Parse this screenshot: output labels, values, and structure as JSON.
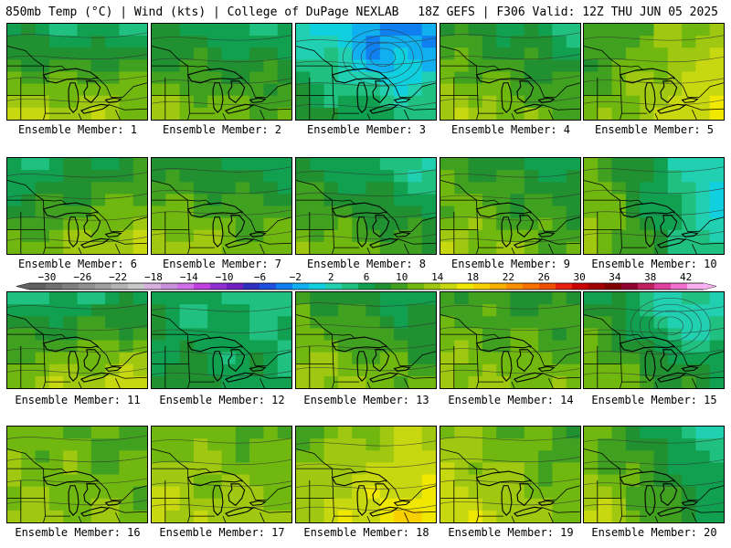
{
  "header": {
    "left_title": "850mb Temp (°C) | Wind (kts) | College of DuPage NEXLAB",
    "right_title": "18Z GEFS | F306 Valid: 12Z THU JUN 05 2025"
  },
  "panel_label_prefix": "Ensemble Member: ",
  "members": [
    {
      "label": "Ensemble Member: 1",
      "base": 13,
      "grad_x": 0.5,
      "grad_y": 9,
      "low": false
    },
    {
      "label": "Ensemble Member: 2",
      "base": 12,
      "grad_x": 1,
      "grad_y": 6,
      "low": false
    },
    {
      "label": "Ensemble Member: 3",
      "base": 6,
      "grad_x": 2,
      "grad_y": 7,
      "low": true
    },
    {
      "label": "Ensemble Member: 4",
      "base": 13,
      "grad_x": 2,
      "grad_y": 6,
      "low": false
    },
    {
      "label": "Ensemble Member: 5",
      "base": 16,
      "grad_x": -3,
      "grad_y": 3,
      "low": false
    },
    {
      "label": "Ensemble Member: 6",
      "base": 13,
      "grad_x": -2,
      "grad_y": 7,
      "low": false
    },
    {
      "label": "Ensemble Member: 7",
      "base": 13,
      "grad_x": 1,
      "grad_y": 6,
      "low": false
    },
    {
      "label": "Ensemble Member: 8",
      "base": 11,
      "grad_x": 2,
      "grad_y": 6,
      "low": false
    },
    {
      "label": "Ensemble Member: 9",
      "base": 13,
      "grad_x": 2,
      "grad_y": 5,
      "low": false
    },
    {
      "label": "Ensemble Member: 10",
      "base": 10,
      "grad_x": 6,
      "grad_y": 2,
      "low": false
    },
    {
      "label": "Ensemble Member: 11",
      "base": 13,
      "grad_x": -1,
      "grad_y": 9,
      "low": false
    },
    {
      "label": "Ensemble Member: 12",
      "base": 9,
      "grad_x": 1,
      "grad_y": 2,
      "low": false
    },
    {
      "label": "Ensemble Member: 13",
      "base": 13,
      "grad_x": 2,
      "grad_y": 5,
      "low": false
    },
    {
      "label": "Ensemble Member: 14",
      "base": 14,
      "grad_x": 1,
      "grad_y": 4,
      "low": false
    },
    {
      "label": "Ensemble Member: 15",
      "base": 11,
      "grad_x": 3,
      "grad_y": 5,
      "low": true
    },
    {
      "label": "Ensemble Member: 16",
      "base": 15,
      "grad_x": 1,
      "grad_y": 2,
      "low": false
    },
    {
      "label": "Ensemble Member: 17",
      "base": 16,
      "grad_x": 1,
      "grad_y": 3,
      "low": false
    },
    {
      "label": "Ensemble Member: 18",
      "base": 18,
      "grad_x": -2,
      "grad_y": 4,
      "low": false
    },
    {
      "label": "Ensemble Member: 19",
      "base": 16,
      "grad_x": 2,
      "grad_y": 3,
      "low": false
    },
    {
      "label": "Ensemble Member: 20",
      "base": 12,
      "grad_x": 4,
      "grad_y": 4,
      "low": false
    }
  ],
  "colorbar": {
    "min": -32,
    "max": 44,
    "step": 2,
    "tick_labels": [
      "-30",
      "-26",
      "-22",
      "-18",
      "-14",
      "-10",
      "-6",
      "-2",
      "2",
      "6",
      "10",
      "14",
      "18",
      "22",
      "26",
      "30",
      "34",
      "38",
      "42"
    ],
    "colors": [
      "#606060",
      "#707070",
      "#808080",
      "#909090",
      "#a0a0a0",
      "#b4b4b4",
      "#c8c8c8",
      "#d8b0e0",
      "#c890d8",
      "#d070e8",
      "#c040e0",
      "#9030d0",
      "#7020c0",
      "#3030c0",
      "#2050e0",
      "#1080f0",
      "#10b0f0",
      "#10d0e0",
      "#20d0b0",
      "#20c080",
      "#10a050",
      "#209030",
      "#40a020",
      "#70b810",
      "#a0c810",
      "#c8d810",
      "#f0e800",
      "#f8d000",
      "#f8b000",
      "#f89000",
      "#f87000",
      "#f05000",
      "#e82010",
      "#c80000",
      "#a00000",
      "#800000",
      "#900030",
      "#c02060",
      "#e040a0",
      "#f070d0",
      "#f8b0f0"
    ]
  }
}
